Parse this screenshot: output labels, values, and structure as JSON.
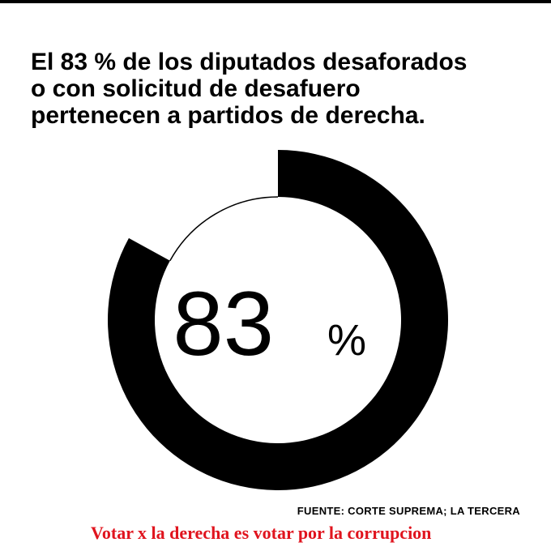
{
  "headline": {
    "lines": [
      "El 83 % de los diputados desaforados",
      "o con solicitud de desafuero",
      "pertenecen a partidos de derecha."
    ]
  },
  "chart_data": {
    "type": "pie",
    "variant": "donut",
    "categories": [
      "partidos de derecha",
      ""
    ],
    "values": [
      83,
      17
    ],
    "center_label": {
      "value": "83",
      "unit": "%"
    },
    "colors": {
      "filled": "#000000",
      "background": "#ffffff"
    }
  },
  "footer": {
    "source": "FUENTE: CORTE SUPREMA; LA TERCERA",
    "slogan": "Votar x la derecha es votar por la corrupcion"
  },
  "colors": {
    "text": "#000000",
    "accent": "#e0141e"
  }
}
